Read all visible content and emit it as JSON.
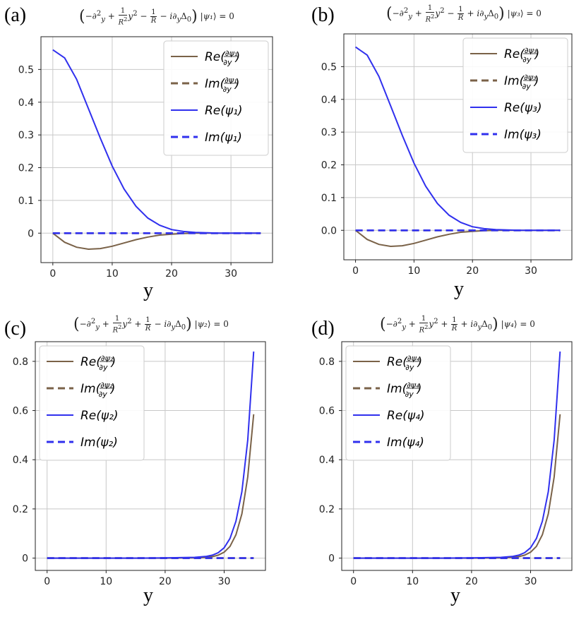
{
  "chart_data": [
    {
      "type": "line",
      "panel_label": "(a)",
      "title": "(−∂²_y + (1/R²)y² − 1/R − i∂_yΔ₀)|ψ₁⟩ = 0",
      "title_parts": {
        "sign1": "−",
        "sign2": "−",
        "psi": "ψ₁"
      },
      "xlabel": "y",
      "ylabel": "",
      "xlim": [
        -2,
        37
      ],
      "ylim": [
        -0.09,
        0.6
      ],
      "x_ticks": [
        0,
        10,
        20,
        30
      ],
      "x_tick_labels": [
        "0",
        "10",
        "20",
        "30"
      ],
      "y_ticks": [
        0,
        0.1,
        0.2,
        0.3,
        0.4,
        0.5
      ],
      "y_tick_labels": [
        "0",
        "0.1",
        "0.2",
        "0.3",
        "0.4",
        "0.5"
      ],
      "grid": true,
      "legend_position": "top-right",
      "x": [
        0,
        2,
        4,
        6,
        8,
        10,
        12,
        14,
        16,
        18,
        20,
        22,
        24,
        26,
        28,
        30,
        32,
        35
      ],
      "series": [
        {
          "name": "Re(∂ψ₁/∂y)",
          "style": "solid",
          "color": "#7a6248",
          "values": [
            0,
            -0.028,
            -0.043,
            -0.049,
            -0.047,
            -0.04,
            -0.03,
            -0.02,
            -0.012,
            -0.006,
            -0.003,
            -0.001,
            0,
            0,
            0,
            0,
            0,
            0
          ]
        },
        {
          "name": "Im(∂ψ₁/∂y)",
          "style": "dashed",
          "color": "#7a6248",
          "values": [
            0,
            0,
            0,
            0,
            0,
            0,
            0,
            0,
            0,
            0,
            0,
            0,
            0,
            0,
            0,
            0,
            0,
            0
          ]
        },
        {
          "name": "Re(ψ₁)",
          "style": "solid",
          "color": "#3030ee",
          "values": [
            0.56,
            0.535,
            0.47,
            0.38,
            0.29,
            0.205,
            0.135,
            0.082,
            0.046,
            0.024,
            0.011,
            0.005,
            0.002,
            0.001,
            0,
            0,
            0,
            0
          ]
        },
        {
          "name": "Im(ψ₁)",
          "style": "dashed",
          "color": "#3030ee",
          "values": [
            0,
            0,
            0,
            0,
            0,
            0,
            0,
            0,
            0,
            0,
            0,
            0,
            0,
            0,
            0,
            0,
            0,
            0
          ]
        }
      ]
    },
    {
      "type": "line",
      "panel_label": "(b)",
      "title": "(−∂²_y + (1/R²)y² − 1/R + i∂_yΔ₀)|ψ₃⟩ = 0",
      "title_parts": {
        "sign1": "−",
        "sign2": "+",
        "psi": "ψ₃"
      },
      "xlabel": "y",
      "ylabel": "",
      "xlim": [
        -2,
        37
      ],
      "ylim": [
        -0.09,
        0.6
      ],
      "x_ticks": [
        0,
        10,
        20,
        30
      ],
      "x_tick_labels": [
        "0",
        "10",
        "20",
        "30"
      ],
      "y_ticks": [
        0,
        0.1,
        0.2,
        0.3,
        0.4,
        0.5
      ],
      "y_tick_labels": [
        "0.0",
        "0.1",
        "0.2",
        "0.3",
        "0.4",
        "0.5"
      ],
      "grid": true,
      "legend_position": "top-right",
      "x": [
        0,
        2,
        4,
        6,
        8,
        10,
        12,
        14,
        16,
        18,
        20,
        22,
        24,
        26,
        28,
        30,
        32,
        35
      ],
      "series": [
        {
          "name": "Re(∂ψ₃/∂y)",
          "style": "solid",
          "color": "#7a6248",
          "values": [
            0,
            -0.028,
            -0.043,
            -0.049,
            -0.047,
            -0.04,
            -0.03,
            -0.02,
            -0.012,
            -0.006,
            -0.003,
            -0.001,
            0,
            0,
            0,
            0,
            0,
            0
          ]
        },
        {
          "name": "Im(∂ψ₃/∂y)",
          "style": "dashed",
          "color": "#7a6248",
          "values": [
            0,
            0,
            0,
            0,
            0,
            0,
            0,
            0,
            0,
            0,
            0,
            0,
            0,
            0,
            0,
            0,
            0,
            0
          ]
        },
        {
          "name": "Re(ψ₃)",
          "style": "solid",
          "color": "#3030ee",
          "values": [
            0.56,
            0.535,
            0.47,
            0.38,
            0.29,
            0.205,
            0.135,
            0.082,
            0.046,
            0.024,
            0.011,
            0.005,
            0.002,
            0.001,
            0,
            0,
            0,
            0
          ]
        },
        {
          "name": "Im(ψ₃)",
          "style": "dashed",
          "color": "#3030ee",
          "values": [
            0,
            0,
            0,
            0,
            0,
            0,
            0,
            0,
            0,
            0,
            0,
            0,
            0,
            0,
            0,
            0,
            0,
            0
          ]
        }
      ]
    },
    {
      "type": "line",
      "panel_label": "(c)",
      "title": "(−∂²_y + (1/R²)y² + 1/R − i∂_yΔ₀)|ψ₂⟩ = 0",
      "title_parts": {
        "sign1": "+",
        "sign2": "−",
        "psi": "ψ₂"
      },
      "xlabel": "y",
      "ylabel": "",
      "xlim": [
        -2,
        37
      ],
      "ylim": [
        -0.05,
        0.88
      ],
      "x_ticks": [
        0,
        10,
        20,
        30
      ],
      "x_tick_labels": [
        "0",
        "10",
        "20",
        "30"
      ],
      "y_ticks": [
        0,
        0.2,
        0.4,
        0.6,
        0.8
      ],
      "y_tick_labels": [
        "0",
        "0.2",
        "0.4",
        "0.6",
        "0.8"
      ],
      "grid": true,
      "legend_position": "top-left",
      "x": [
        0,
        5,
        10,
        15,
        20,
        25,
        27,
        28,
        29,
        30,
        31,
        32,
        33,
        34,
        35
      ],
      "series": [
        {
          "name": "Re(∂ψ₂/∂y)",
          "style": "solid",
          "color": "#7a6248",
          "values": [
            0,
            0,
            0,
            0,
            0,
            0.001,
            0.003,
            0.006,
            0.012,
            0.024,
            0.048,
            0.095,
            0.18,
            0.33,
            0.585
          ]
        },
        {
          "name": "Im(∂ψ₂/∂y)",
          "style": "dashed",
          "color": "#7a6248",
          "values": [
            0,
            0,
            0,
            0,
            0,
            0,
            0,
            0,
            0,
            0,
            0,
            0,
            0,
            0,
            0
          ]
        },
        {
          "name": "Re(ψ₂)",
          "style": "solid",
          "color": "#3030ee",
          "values": [
            0,
            0,
            0,
            0,
            0.001,
            0.003,
            0.007,
            0.012,
            0.022,
            0.042,
            0.08,
            0.15,
            0.27,
            0.48,
            0.84
          ]
        },
        {
          "name": "Im(ψ₂)",
          "style": "dashed",
          "color": "#3030ee",
          "values": [
            0,
            0,
            0,
            0,
            0,
            0,
            0,
            0,
            0,
            0,
            0,
            0,
            0,
            0,
            0
          ]
        }
      ]
    },
    {
      "type": "line",
      "panel_label": "(d)",
      "title": "(−∂²_y + (1/R²)y² + 1/R + i∂_yΔ₀)|ψ₄⟩ = 0",
      "title_parts": {
        "sign1": "+",
        "sign2": "+",
        "psi": "ψ₄"
      },
      "xlabel": "y",
      "ylabel": "",
      "xlim": [
        -2,
        37
      ],
      "ylim": [
        -0.05,
        0.88
      ],
      "x_ticks": [
        0,
        10,
        20,
        30
      ],
      "x_tick_labels": [
        "0",
        "10",
        "20",
        "30"
      ],
      "y_ticks": [
        0,
        0.2,
        0.4,
        0.6,
        0.8
      ],
      "y_tick_labels": [
        "0",
        "0.2",
        "0.4",
        "0.6",
        "0.8"
      ],
      "grid": true,
      "legend_position": "top-left",
      "x": [
        0,
        5,
        10,
        15,
        20,
        25,
        27,
        28,
        29,
        30,
        31,
        32,
        33,
        34,
        35
      ],
      "series": [
        {
          "name": "Re(∂ψ₄/∂y)",
          "style": "solid",
          "color": "#7a6248",
          "values": [
            0,
            0,
            0,
            0,
            0,
            0.001,
            0.003,
            0.006,
            0.012,
            0.024,
            0.048,
            0.095,
            0.18,
            0.33,
            0.585
          ]
        },
        {
          "name": "Im(∂ψ₄/∂y)",
          "style": "dashed",
          "color": "#7a6248",
          "values": [
            0,
            0,
            0,
            0,
            0,
            0,
            0,
            0,
            0,
            0,
            0,
            0,
            0,
            0,
            0
          ]
        },
        {
          "name": "Re(ψ₄)",
          "style": "solid",
          "color": "#3030ee",
          "values": [
            0,
            0,
            0,
            0,
            0.001,
            0.003,
            0.007,
            0.012,
            0.022,
            0.042,
            0.08,
            0.15,
            0.27,
            0.48,
            0.84
          ]
        },
        {
          "name": "Im(ψ₄)",
          "style": "dashed",
          "color": "#3030ee",
          "values": [
            0,
            0,
            0,
            0,
            0,
            0,
            0,
            0,
            0,
            0,
            0,
            0,
            0,
            0,
            0
          ]
        }
      ]
    }
  ]
}
